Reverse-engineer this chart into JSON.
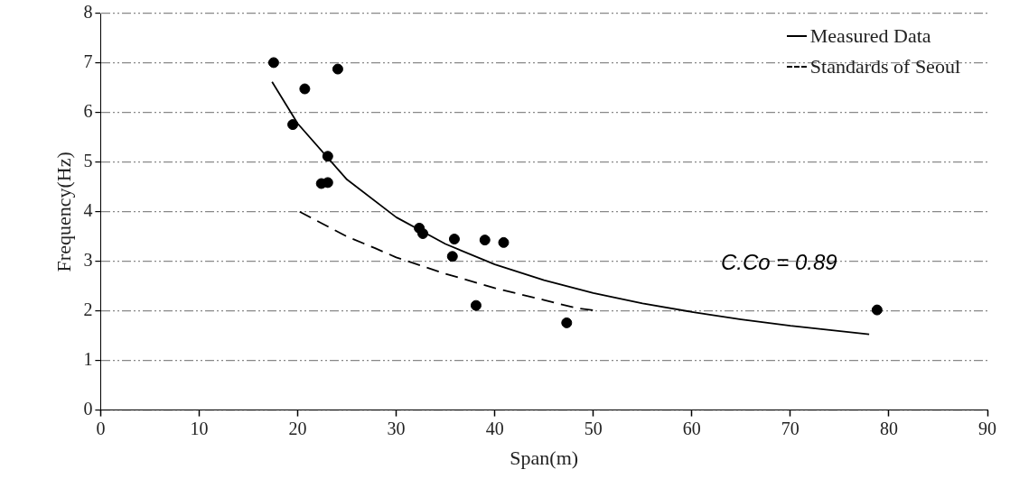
{
  "chart_data": {
    "type": "scatter",
    "xlabel": "Span(m)",
    "ylabel": "Frequency(Hz)",
    "xlim": [
      0,
      90
    ],
    "xticks": [
      0,
      10,
      20,
      30,
      40,
      50,
      60,
      70,
      80,
      90
    ],
    "ylim": [
      0,
      8
    ],
    "yticks": [
      0,
      1,
      2,
      3,
      4,
      5,
      6,
      7,
      8
    ],
    "grid": "y",
    "legend": "top right",
    "marker": "circle",
    "series": [
      {
        "color": "#000000",
        "x": [
          17.56,
          24.07,
          20.72,
          19.5,
          23.05,
          22.4,
          23.05,
          32.34,
          32.7,
          35.9,
          35.7,
          39.0,
          40.9,
          38.1,
          47.3,
          78.8
        ],
        "values": [
          7.01,
          6.88,
          6.48,
          5.76,
          5.12,
          4.57,
          4.59,
          3.67,
          3.56,
          3.45,
          3.1,
          3.43,
          3.38,
          2.11,
          1.76,
          2.02
        ]
      },
      {
        "type": "line",
        "name": "Measured Data",
        "color": "#000000",
        "line_style": "solid",
        "marker": "none",
        "x": [
          17.4,
          20,
          25,
          30,
          35,
          40,
          45,
          50,
          55,
          60,
          65,
          70,
          78
        ],
        "values": [
          6.62,
          5.78,
          4.65,
          3.89,
          3.35,
          2.94,
          2.62,
          2.36,
          2.15,
          1.98,
          1.83,
          1.7,
          1.53
        ]
      },
      {
        "type": "line",
        "name": "Standards of Seoul",
        "color": "#000000",
        "line_style": "dashed",
        "marker": "none",
        "x": [
          20.2,
          25,
          27.8,
          30,
          35,
          40,
          45,
          48.2,
          50.5
        ],
        "values": [
          4.0,
          3.5,
          3.27,
          3.08,
          2.75,
          2.46,
          2.22,
          2.06,
          2.0
        ]
      }
    ],
    "annotations": [
      "C.Co = 0.89"
    ]
  }
}
